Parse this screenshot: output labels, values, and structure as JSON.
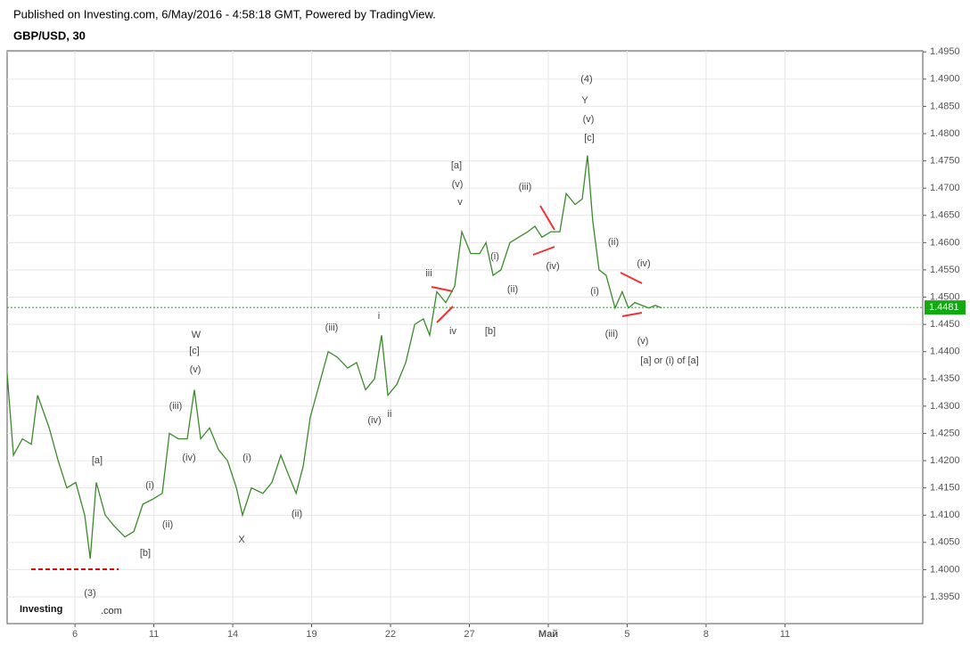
{
  "header": {
    "published": "Published on Investing.com, 6/May/2016 - 4:58:18 GMT, Powered by TradingView.",
    "symbol": "GBP/USD, 30"
  },
  "logo": {
    "brand": "Investing",
    "suffix": ".com"
  },
  "chart_data": {
    "type": "line",
    "series": [
      {
        "name": "GBP/USD",
        "color": "#3a8a2a",
        "values": [
          1.436,
          1.421,
          1.424,
          1.423,
          1.432,
          1.426,
          1.42,
          1.415,
          1.416,
          1.41,
          1.402,
          1.416,
          1.41,
          1.408,
          1.406,
          1.407,
          1.412,
          1.413,
          1.414,
          1.425,
          1.424,
          1.424,
          1.433,
          1.424,
          1.426,
          1.422,
          1.42,
          1.415,
          1.41,
          1.415,
          1.414,
          1.416,
          1.421,
          1.418,
          1.414,
          1.419,
          1.428,
          1.434,
          1.44,
          1.439,
          1.437,
          1.438,
          1.433,
          1.435,
          1.443,
          1.432,
          1.434,
          1.438,
          1.445,
          1.446,
          1.443,
          1.451,
          1.449,
          1.452,
          1.462,
          1.458,
          1.458,
          1.46,
          1.454,
          1.455,
          1.46,
          1.461,
          1.462,
          1.463,
          1.461,
          1.462,
          1.462,
          1.469,
          1.467,
          1.468,
          1.476,
          1.464,
          1.455,
          1.454,
          1.448,
          1.451,
          1.448,
          1.449,
          1.4485,
          1.448,
          1.4485,
          1.448
        ]
      }
    ],
    "x": [
      0.42,
      0.66,
      1.0,
      1.34,
      1.58,
      2.02,
      2.36,
      2.69,
      3.03,
      3.37,
      3.58,
      3.81,
      4.15,
      4.49,
      4.9,
      5.24,
      5.58,
      5.98,
      6.32,
      6.59,
      6.93,
      7.27,
      7.54,
      7.78,
      8.12,
      8.46,
      8.8,
      9.14,
      9.37,
      9.71,
      10.15,
      10.49,
      10.83,
      11.07,
      11.41,
      11.68,
      11.95,
      12.29,
      12.63,
      12.97,
      13.37,
      13.71,
      14.05,
      14.39,
      14.66,
      14.9,
      15.24,
      15.58,
      15.92,
      16.25,
      16.49,
      16.76,
      17.1,
      17.44,
      17.71,
      18.05,
      18.39,
      18.63,
      18.9,
      19.2,
      19.54,
      19.88,
      20.22,
      20.49,
      20.76,
      21.1,
      21.44,
      21.68,
      22.02,
      22.29,
      22.49,
      22.69,
      22.93,
      23.2,
      23.54,
      23.81,
      24.05,
      24.29,
      24.56,
      24.83,
      25.07,
      25.31
    ],
    "xlim": [
      0.42,
      35.24
    ],
    "xticks": [
      {
        "value": 3,
        "label": "6"
      },
      {
        "value": 6,
        "label": "11"
      },
      {
        "value": 9,
        "label": "14"
      },
      {
        "value": 12,
        "label": "19"
      },
      {
        "value": 15,
        "label": "22"
      },
      {
        "value": 18,
        "label": "27"
      },
      {
        "value": 21,
        "label": "Май"
      },
      {
        "value": 24,
        "label": "5"
      },
      {
        "value": 27,
        "label": "8"
      },
      {
        "value": 30,
        "label": "11"
      }
    ],
    "ylim": [
      1.3901,
      1.4952
    ],
    "yticks": [
      {
        "value": 1.395,
        "label": "1.3950"
      },
      {
        "value": 1.4,
        "label": "1.4000"
      },
      {
        "value": 1.405,
        "label": "1.4050"
      },
      {
        "value": 1.41,
        "label": "1.4100"
      },
      {
        "value": 1.415,
        "label": "1.4150"
      },
      {
        "value": 1.42,
        "label": "1.4200"
      },
      {
        "value": 1.425,
        "label": "1.4250"
      },
      {
        "value": 1.43,
        "label": "1.4300"
      },
      {
        "value": 1.435,
        "label": "1.4350"
      },
      {
        "value": 1.44,
        "label": "1.4400"
      },
      {
        "value": 1.445,
        "label": "1.4450"
      },
      {
        "value": 1.45,
        "label": "1.4500"
      },
      {
        "value": 1.455,
        "label": "1.4550"
      },
      {
        "value": 1.46,
        "label": "1.4600"
      },
      {
        "value": 1.465,
        "label": "1.4650"
      },
      {
        "value": 1.47,
        "label": "1.4700"
      },
      {
        "value": 1.475,
        "label": "1.4750"
      },
      {
        "value": 1.48,
        "label": "1.4800"
      },
      {
        "value": 1.485,
        "label": "1.4850"
      },
      {
        "value": 1.49,
        "label": "1.4900"
      },
      {
        "value": 1.495,
        "label": "1.4950"
      }
    ],
    "grid": true,
    "last_price": 1.4481,
    "annotations": [
      "(4)",
      "Y",
      "(v)",
      "[c]",
      "[a]",
      "(v)",
      "v",
      "(iii)",
      "(ii)",
      "(iv)",
      "(iv)",
      "(i)",
      "(ii)",
      "(i)",
      "iii",
      "iv",
      "[b]",
      "(iii)",
      "(v)",
      "[a] or (i) of [a]",
      "i",
      "(iii)",
      "(iv)",
      "ii",
      "W",
      "[c]",
      "(v)",
      "(iii)",
      "(iv)",
      "(i)",
      "X",
      "(ii)",
      "[a]",
      "(i)",
      "(ii)",
      "[b]",
      "(3)"
    ]
  }
}
